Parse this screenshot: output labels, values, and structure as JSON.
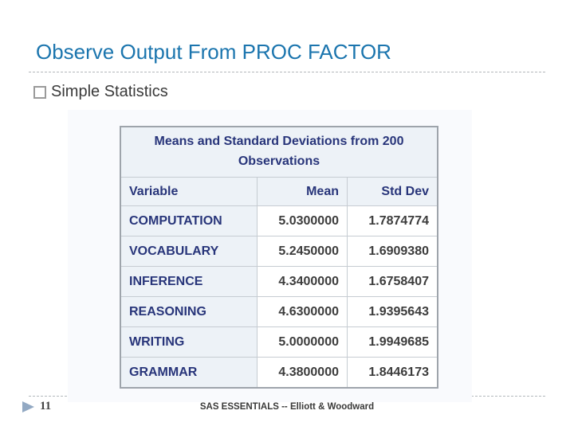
{
  "slide": {
    "title": "Observe Output From PROC FACTOR",
    "bullet_text": "Simple Statistics",
    "page_number": "11",
    "footer_text": "SAS ESSENTIALS -- Elliott & Woodward"
  },
  "colors": {
    "title_blue": "#1b75ae",
    "table_navy": "#28357a",
    "header_cell_bg": "#edf2f7",
    "image_bg": "#f9fafd",
    "arrow_steel_blue": "#92a9c3"
  },
  "chart_data": {
    "type": "table",
    "title": "Means and Standard Deviations from 200 Observations",
    "columns": [
      "Variable",
      "Mean",
      "Std Dev"
    ],
    "rows": [
      [
        "COMPUTATION",
        "5.0300000",
        "1.7874774"
      ],
      [
        "VOCABULARY",
        "5.2450000",
        "1.6909380"
      ],
      [
        "INFERENCE",
        "4.3400000",
        "1.6758407"
      ],
      [
        "REASONING",
        "4.6300000",
        "1.9395643"
      ],
      [
        "WRITING",
        "5.0000000",
        "1.9949685"
      ],
      [
        "GRAMMAR",
        "4.3800000",
        "1.8446173"
      ]
    ]
  },
  "table": {
    "caption": "Means and Standard Deviations from 200 Observations",
    "columns": [
      "Variable",
      "Mean",
      "Std Dev"
    ],
    "rows": [
      {
        "variable": "COMPUTATION",
        "mean": "5.0300000",
        "std_dev": "1.7874774"
      },
      {
        "variable": "VOCABULARY",
        "mean": "5.2450000",
        "std_dev": "1.6909380"
      },
      {
        "variable": "INFERENCE",
        "mean": "4.3400000",
        "std_dev": "1.6758407"
      },
      {
        "variable": "REASONING",
        "mean": "4.6300000",
        "std_dev": "1.9395643"
      },
      {
        "variable": "WRITING",
        "mean": "5.0000000",
        "std_dev": "1.9949685"
      },
      {
        "variable": "GRAMMAR",
        "mean": "4.3800000",
        "std_dev": "1.8446173"
      }
    ]
  }
}
